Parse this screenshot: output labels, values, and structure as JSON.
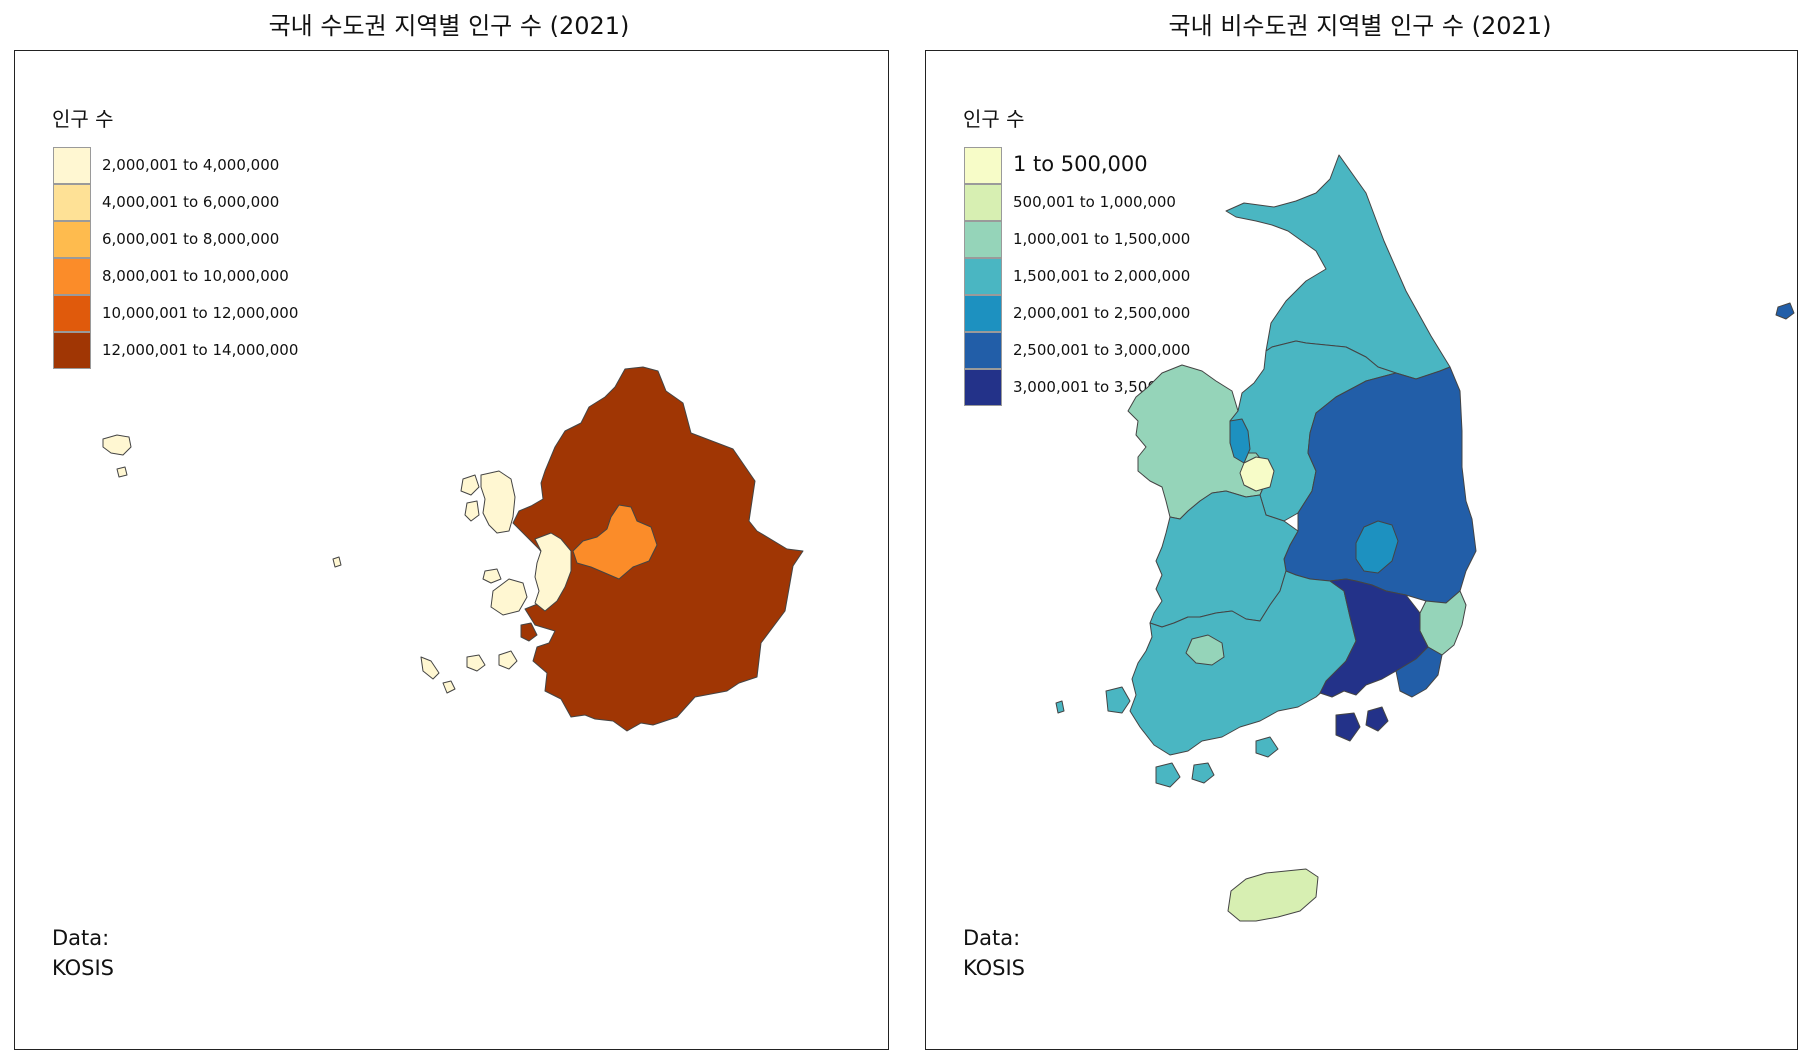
{
  "left_map": {
    "title": "국내 수도권 지역별 인구 수 (2021)",
    "legend": {
      "title": "인구 수",
      "items": [
        {
          "label": "2,000,001 to 4,000,000",
          "color": "#FFF7D2"
        },
        {
          "label": "4,000,001 to 6,000,000",
          "color": "#FEE196"
        },
        {
          "label": "6,000,001 to 8,000,000",
          "color": "#FEBB4E"
        },
        {
          "label": "8,000,001 to 10,000,000",
          "color": "#FB8C29"
        },
        {
          "label": "10,000,001 to 12,000,000",
          "color": "#E05A0C"
        },
        {
          "label": "12,000,001 to 14,000,000",
          "color": "#A03604"
        }
      ]
    },
    "regions": [
      {
        "name": "Gyeonggi",
        "color": "#A03604"
      },
      {
        "name": "Seoul",
        "color": "#FB8C29"
      },
      {
        "name": "Incheon",
        "color": "#FFF7D2"
      }
    ],
    "caption_line1": "Data:",
    "caption_line2": "KOSIS"
  },
  "right_map": {
    "title": "국내 비수도권 지역별 인구 수 (2021)",
    "legend": {
      "title": "인구 수",
      "items": [
        {
          "label": "1 to 500,000",
          "color": "#F7FCC8"
        },
        {
          "label": "500,001 to 1,000,000",
          "color": "#D7EFB2"
        },
        {
          "label": "1,000,001 to 1,500,000",
          "color": "#95D4B9"
        },
        {
          "label": "1,500,001 to 2,000,000",
          "color": "#4AB6C2"
        },
        {
          "label": "2,000,001 to 2,500,000",
          "color": "#1D91C0"
        },
        {
          "label": "2,500,001 to 3,000,000",
          "color": "#225EA8"
        },
        {
          "label": "3,000,001 to 3,500,000",
          "color": "#233289"
        }
      ]
    },
    "regions": [
      {
        "name": "Gangwon",
        "color": "#4AB6C2"
      },
      {
        "name": "Chungbuk",
        "color": "#4AB6C2"
      },
      {
        "name": "Chungnam",
        "color": "#1D91C0"
      },
      {
        "name": "Sejong",
        "color": "#F7FCC8"
      },
      {
        "name": "Daejeon",
        "color": "#95D4B9"
      },
      {
        "name": "Gyeongbuk",
        "color": "#225EA8"
      },
      {
        "name": "Daegu",
        "color": "#1D91C0"
      },
      {
        "name": "Ulsan",
        "color": "#95D4B9"
      },
      {
        "name": "Jeonbuk",
        "color": "#4AB6C2"
      },
      {
        "name": "Gwangju",
        "color": "#95D4B9"
      },
      {
        "name": "Jeonnam",
        "color": "#4AB6C2"
      },
      {
        "name": "Gyeongnam",
        "color": "#233289"
      },
      {
        "name": "Busan",
        "color": "#225EA8"
      },
      {
        "name": "Jeju",
        "color": "#D7EFB2"
      }
    ],
    "caption_line1": "Data:",
    "caption_line2": "KOSIS"
  }
}
